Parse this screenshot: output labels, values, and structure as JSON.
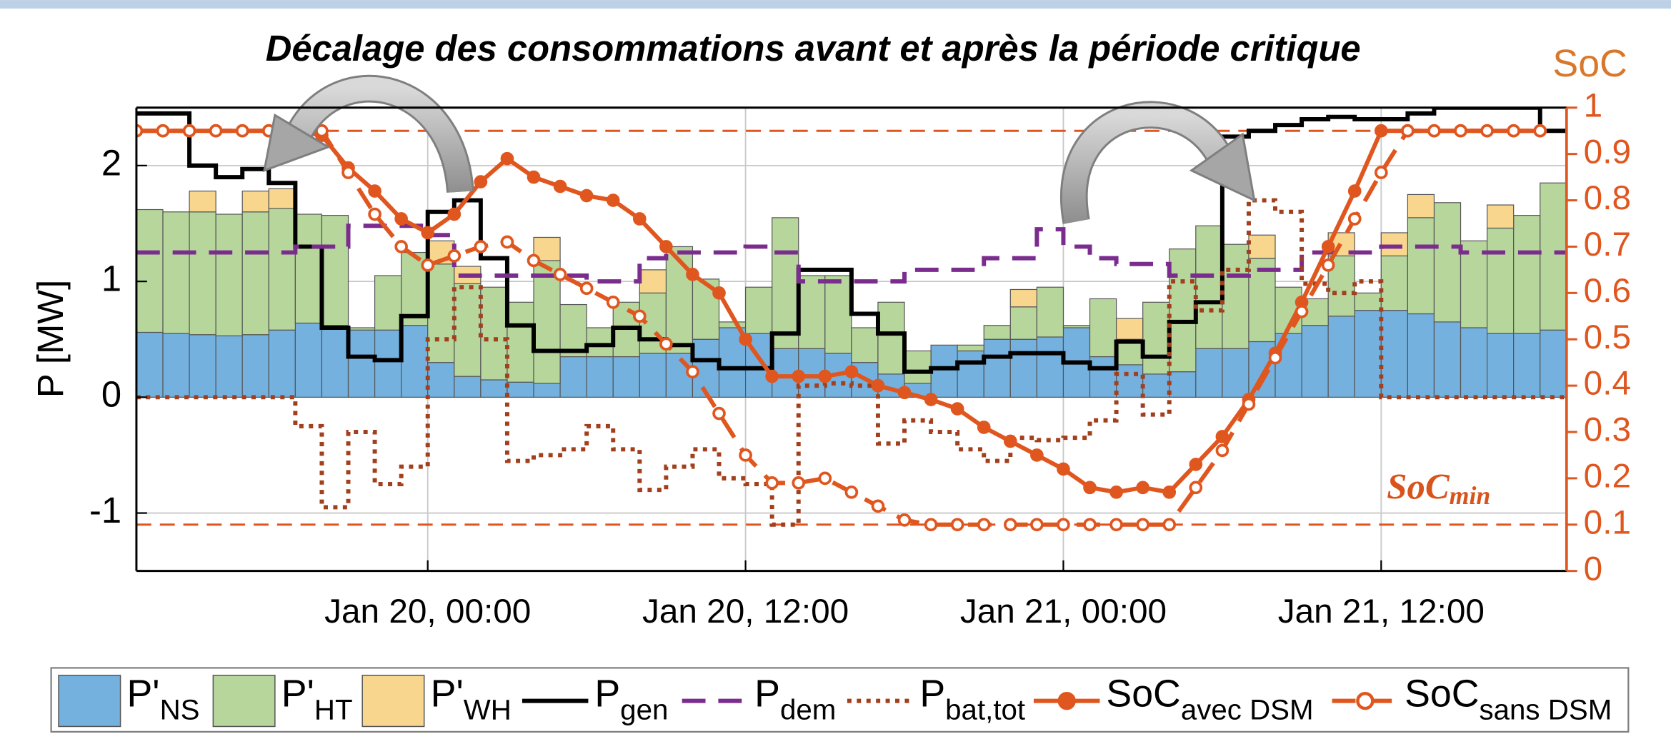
{
  "chart_data": {
    "type": "bar",
    "title": "Décalage des consommations avant et après la période critique",
    "ylabel": "P [MW]",
    "y2label": "SoC",
    "x": [
      -11,
      -10,
      -9,
      -8,
      -7,
      -6,
      -5,
      -4,
      -3,
      -2,
      -1,
      0,
      1,
      2,
      3,
      4,
      5,
      6,
      7,
      8,
      9,
      10,
      11,
      12,
      13,
      14,
      15,
      16,
      17,
      18,
      19,
      20,
      21,
      22,
      23,
      24,
      25,
      26,
      27,
      28,
      29,
      30,
      31,
      32,
      33,
      34,
      35,
      36,
      37,
      38,
      39,
      40,
      41,
      42
    ],
    "xlim": [
      -11,
      43
    ],
    "xticks": [
      {
        "value": 0,
        "label": "Jan 20, 00:00"
      },
      {
        "value": 12,
        "label": "Jan 20, 12:00"
      },
      {
        "value": 24,
        "label": "Jan 21, 00:00"
      },
      {
        "value": 36,
        "label": "Jan 21, 12:00"
      }
    ],
    "ylim": [
      -1.5,
      2.5
    ],
    "yticks": [
      -1,
      0,
      1,
      2
    ],
    "y2lim": [
      0,
      1
    ],
    "y2ticks": [
      0,
      0.1,
      0.2,
      0.3,
      0.4,
      0.5,
      0.6,
      0.7,
      0.8,
      0.9,
      1
    ],
    "grid": true,
    "stacked": true,
    "y2_color": "#e0561f",
    "reference_lines": {
      "axis": "y2",
      "color": "#e0561f",
      "values": [
        0.95,
        0.1
      ]
    },
    "annotation": {
      "text": "SoC",
      "sub": "min"
    },
    "series": [
      {
        "name": "P'",
        "name_sub": "NS",
        "kind": "bar",
        "color": "#74b1df",
        "values": [
          0.56,
          0.55,
          0.54,
          0.53,
          0.54,
          0.58,
          0.64,
          0.62,
          0.58,
          0.58,
          0.62,
          0.3,
          0.18,
          0.15,
          0.13,
          0.12,
          0.35,
          0.35,
          0.35,
          0.38,
          0.38,
          0.5,
          0.6,
          0.55,
          0.42,
          0.42,
          0.38,
          0.3,
          0.2,
          0.12,
          0.45,
          0.4,
          0.5,
          0.5,
          0.52,
          0.6,
          0.35,
          0.28,
          0.2,
          0.22,
          0.42,
          0.42,
          0.48,
          0.55,
          0.62,
          0.7,
          0.75,
          0.75,
          0.72,
          0.65,
          0.6,
          0.55,
          0.55,
          0.58
        ]
      },
      {
        "name": "P'",
        "name_sub": "HT",
        "kind": "bar",
        "color": "#b6d69c",
        "values": [
          1.06,
          1.05,
          1.06,
          1.05,
          1.06,
          1.05,
          0.94,
          0.95,
          0.02,
          0.47,
          0.63,
          0.85,
          0.8,
          0.8,
          0.69,
          1.06,
          0.45,
          0.25,
          0.47,
          0.52,
          0.92,
          0.52,
          0.05,
          0.4,
          1.13,
          0.63,
          0.67,
          0.3,
          0.62,
          0.28,
          0,
          0.05,
          0.12,
          0.28,
          0.43,
          0.02,
          0.5,
          0.22,
          0.62,
          1.06,
          1.06,
          0.9,
          0.72,
          0.4,
          0.23,
          0.52,
          0.15,
          0.47,
          0.83,
          1.03,
          0.75,
          0.91,
          1.02,
          1.27
        ]
      },
      {
        "name": "P'",
        "name_sub": "WH",
        "kind": "bar",
        "color": "#f8d68d",
        "values": [
          0,
          0,
          0.18,
          0,
          0.18,
          0.17,
          0,
          0,
          0,
          0,
          0,
          0.2,
          0.15,
          0,
          0,
          0.2,
          0,
          0,
          0,
          0.2,
          0,
          0,
          0,
          0,
          0,
          0,
          0,
          0,
          0,
          0,
          0,
          0,
          0,
          0.15,
          0,
          0,
          0,
          0.18,
          0,
          0,
          0,
          0,
          0.2,
          0,
          0,
          0.2,
          0,
          0.2,
          0.2,
          0,
          0,
          0.2,
          0,
          0
        ]
      },
      {
        "name": "P",
        "name_sub": "gen",
        "kind": "step",
        "color": "#000000",
        "style": "solid",
        "values": [
          2.45,
          2.45,
          2.0,
          1.9,
          1.97,
          1.85,
          1.3,
          0.6,
          0.35,
          0.32,
          0.7,
          1.6,
          1.7,
          1.2,
          0.62,
          0.4,
          0.4,
          0.45,
          0.6,
          0.5,
          0.45,
          0.32,
          0.25,
          0.25,
          0.55,
          1.1,
          1.1,
          0.72,
          0.55,
          0.22,
          0.25,
          0.3,
          0.35,
          0.38,
          0.38,
          0.3,
          0.25,
          0.48,
          0.35,
          0.65,
          0.82,
          2.25,
          2.3,
          2.35,
          2.4,
          2.42,
          2.4,
          2.4,
          2.45,
          2.5,
          2.5,
          2.5,
          2.5,
          2.3
        ]
      },
      {
        "name": "P",
        "name_sub": "dem",
        "kind": "step",
        "color": "#7b2d8e",
        "style": "dashed",
        "values": [
          1.25,
          1.25,
          1.25,
          1.25,
          1.25,
          1.25,
          1.3,
          1.3,
          1.48,
          1.48,
          1.48,
          1.4,
          1.05,
          1.05,
          1.05,
          1.05,
          1.05,
          1.0,
          1.0,
          1.2,
          1.25,
          1.25,
          1.25,
          1.3,
          1.25,
          1.0,
          1.0,
          1.0,
          1.0,
          1.1,
          1.1,
          1.1,
          1.2,
          1.2,
          1.45,
          1.3,
          1.2,
          1.15,
          1.15,
          1.05,
          1.05,
          1.05,
          1.1,
          1.1,
          1.25,
          1.25,
          1.25,
          1.3,
          1.3,
          1.3,
          1.25,
          1.25,
          1.25,
          1.25
        ]
      },
      {
        "name": "P",
        "name_sub": "bat,tot",
        "kind": "step",
        "color": "#a23f1c",
        "style": "dotted",
        "values": [
          0,
          0,
          0,
          0,
          0,
          0,
          -0.25,
          -0.95,
          -0.3,
          -0.75,
          -0.6,
          0.5,
          0.95,
          0.5,
          -0.55,
          -0.5,
          -0.45,
          -0.25,
          -0.45,
          -0.8,
          -0.6,
          -0.45,
          -0.7,
          -0.75,
          -1.1,
          0.1,
          0.12,
          0.1,
          -0.4,
          -0.2,
          -0.3,
          -0.45,
          -0.55,
          -0.35,
          -0.37,
          -0.35,
          -0.2,
          0.2,
          -0.15,
          1.0,
          0.75,
          1.1,
          1.7,
          1.6,
          0.98,
          0.9,
          1.0,
          0,
          0,
          0,
          0,
          0,
          0,
          0
        ]
      },
      {
        "name": "SoC",
        "name_sub": "avec DSM",
        "kind": "line",
        "axis": "y2",
        "color": "#e0561f",
        "style": "solid",
        "marker": "filled",
        "values": [
          0.95,
          0.95,
          0.95,
          0.95,
          0.95,
          0.95,
          0.95,
          0.94,
          0.87,
          0.82,
          0.76,
          0.73,
          0.77,
          0.84,
          0.89,
          0.85,
          0.83,
          0.81,
          0.8,
          0.76,
          0.7,
          0.64,
          0.6,
          0.5,
          0.42,
          0.42,
          0.42,
          0.43,
          0.4,
          0.385,
          0.37,
          0.35,
          0.31,
          0.28,
          0.25,
          0.22,
          0.18,
          0.17,
          0.18,
          0.17,
          0.23,
          0.29,
          0.37,
          0.47,
          0.58,
          0.7,
          0.82,
          0.95,
          0.95,
          0.95,
          0.95,
          0.95,
          0.95,
          0.95
        ]
      },
      {
        "name": "SoC",
        "name_sub": "sans DSM",
        "kind": "line",
        "axis": "y2",
        "color": "#e0561f",
        "style": "dashed",
        "marker": "open",
        "values": [
          0.95,
          0.95,
          0.95,
          0.95,
          0.95,
          0.95,
          0.95,
          0.95,
          0.86,
          0.77,
          0.7,
          0.66,
          0.68,
          0.7,
          0.71,
          0.67,
          0.64,
          0.61,
          0.58,
          0.55,
          0.49,
          0.43,
          0.34,
          0.25,
          0.19,
          0.19,
          0.2,
          0.17,
          0.14,
          0.11,
          0.1,
          0.1,
          0.1,
          0.1,
          0.1,
          0.1,
          0.1,
          0.1,
          0.1,
          0.1,
          0.18,
          0.26,
          0.36,
          0.46,
          0.56,
          0.66,
          0.76,
          0.86,
          0.95,
          0.95,
          0.95,
          0.95,
          0.95,
          0.95
        ]
      }
    ]
  }
}
